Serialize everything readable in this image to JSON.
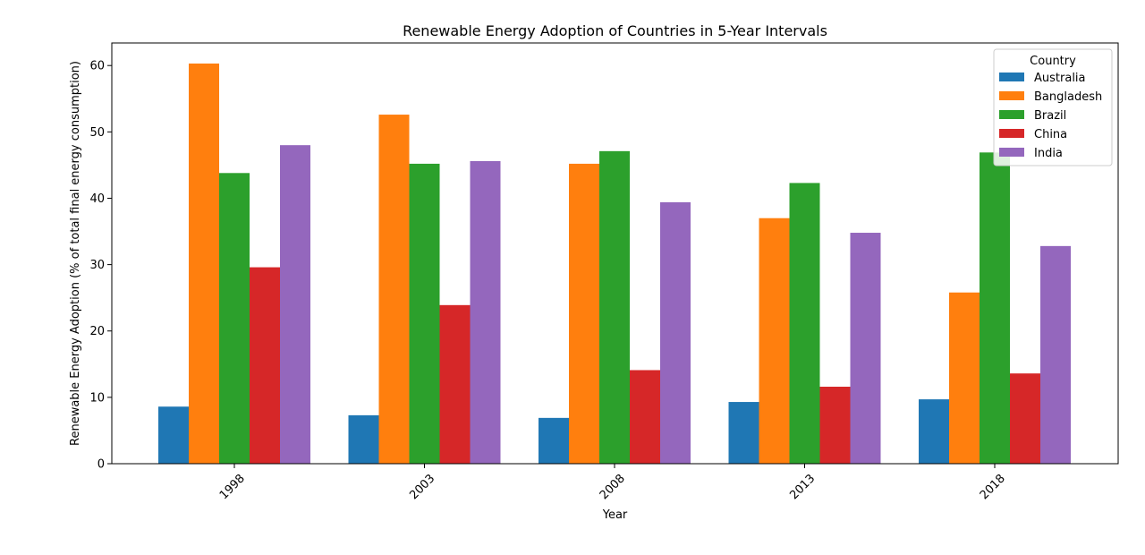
{
  "chart_data": {
    "type": "bar",
    "title": "Renewable Energy Adoption of Countries in 5-Year Intervals",
    "xlabel": "Year",
    "ylabel": "Renewable Energy Adoption (% of total final energy consumption)",
    "categories": [
      "1998",
      "2003",
      "2008",
      "2013",
      "2018"
    ],
    "ylim": [
      0,
      63.4
    ],
    "yticks": [
      0,
      10,
      20,
      30,
      40,
      50,
      60
    ],
    "ytick_labels": [
      "0",
      "10",
      "20",
      "30",
      "40",
      "50",
      "60"
    ],
    "grid": false,
    "legend": {
      "title": "Country",
      "placement": "top-right"
    },
    "series": [
      {
        "name": "Australia",
        "color": "#1f77b4",
        "values": [
          8.6,
          7.3,
          6.9,
          9.3,
          9.7
        ]
      },
      {
        "name": "Bangladesh",
        "color": "#ff7f0e",
        "values": [
          60.3,
          52.6,
          45.2,
          37.0,
          25.8
        ]
      },
      {
        "name": "Brazil",
        "color": "#2ca02c",
        "values": [
          43.8,
          45.2,
          47.1,
          42.3,
          46.9
        ]
      },
      {
        "name": "China",
        "color": "#d62728",
        "values": [
          29.6,
          23.9,
          14.1,
          11.6,
          13.6
        ]
      },
      {
        "name": "India",
        "color": "#9467bd",
        "values": [
          48.0,
          45.6,
          39.4,
          34.8,
          32.8
        ]
      }
    ]
  }
}
